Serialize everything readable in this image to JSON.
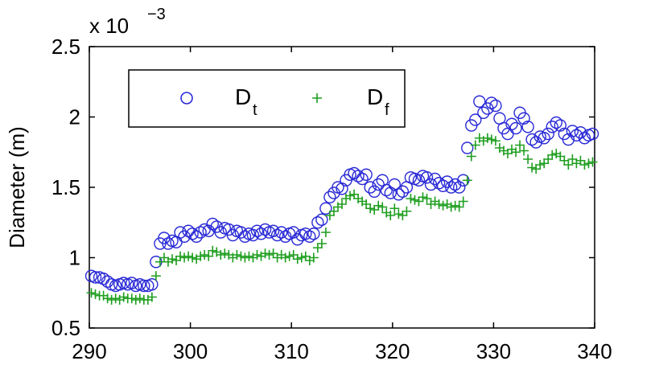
{
  "chart_data": {
    "type": "scatter",
    "xlabel": "",
    "ylabel": "Diameter (m)",
    "xlim": [
      290,
      340
    ],
    "ylim": [
      0.5,
      2.5
    ],
    "x_ticks": [
      "290",
      "300",
      "310",
      "320",
      "330",
      "340"
    ],
    "y_ticks": [
      "0.5",
      "1",
      "1.5",
      "2",
      "2.5"
    ],
    "y_multiplier": {
      "base": "x 10",
      "exponent": "−3"
    },
    "grid": false,
    "legend_position": "top-left",
    "series": [
      {
        "name": "Dt",
        "name_main": "D",
        "name_sub": "t",
        "marker": "circle",
        "color": "#2a2ad6",
        "points": [
          [
            290.2,
            0.87
          ],
          [
            290.6,
            0.86
          ],
          [
            291.0,
            0.86
          ],
          [
            291.4,
            0.85
          ],
          [
            291.8,
            0.83
          ],
          [
            292.2,
            0.81
          ],
          [
            292.6,
            0.8
          ],
          [
            293.0,
            0.81
          ],
          [
            293.4,
            0.82
          ],
          [
            293.8,
            0.81
          ],
          [
            294.2,
            0.82
          ],
          [
            294.6,
            0.8
          ],
          [
            295.0,
            0.81
          ],
          [
            295.4,
            0.8
          ],
          [
            295.8,
            0.8
          ],
          [
            296.2,
            0.81
          ],
          [
            296.6,
            0.97
          ],
          [
            297.0,
            1.1
          ],
          [
            297.4,
            1.14
          ],
          [
            297.8,
            1.1
          ],
          [
            298.2,
            1.12
          ],
          [
            298.6,
            1.11
          ],
          [
            299.0,
            1.18
          ],
          [
            299.4,
            1.15
          ],
          [
            299.8,
            1.19
          ],
          [
            300.2,
            1.17
          ],
          [
            300.6,
            1.15
          ],
          [
            301.0,
            1.18
          ],
          [
            301.4,
            1.2
          ],
          [
            301.8,
            1.19
          ],
          [
            302.2,
            1.24
          ],
          [
            302.6,
            1.22
          ],
          [
            303.0,
            1.18
          ],
          [
            303.4,
            1.21
          ],
          [
            303.8,
            1.2
          ],
          [
            304.2,
            1.16
          ],
          [
            304.6,
            1.19
          ],
          [
            305.0,
            1.18
          ],
          [
            305.4,
            1.15
          ],
          [
            305.8,
            1.17
          ],
          [
            306.2,
            1.16
          ],
          [
            306.6,
            1.19
          ],
          [
            307.0,
            1.17
          ],
          [
            307.4,
            1.2
          ],
          [
            307.8,
            1.18
          ],
          [
            308.2,
            1.19
          ],
          [
            308.6,
            1.16
          ],
          [
            309.0,
            1.18
          ],
          [
            309.4,
            1.15
          ],
          [
            309.8,
            1.17
          ],
          [
            310.2,
            1.18
          ],
          [
            310.6,
            1.13
          ],
          [
            311.0,
            1.16
          ],
          [
            311.4,
            1.17
          ],
          [
            311.8,
            1.15
          ],
          [
            312.2,
            1.17
          ],
          [
            312.6,
            1.25
          ],
          [
            313.0,
            1.27
          ],
          [
            313.4,
            1.35
          ],
          [
            313.8,
            1.43
          ],
          [
            314.2,
            1.46
          ],
          [
            314.6,
            1.5
          ],
          [
            315.0,
            1.49
          ],
          [
            315.4,
            1.55
          ],
          [
            315.8,
            1.59
          ],
          [
            316.2,
            1.6
          ],
          [
            316.6,
            1.58
          ],
          [
            317.0,
            1.56
          ],
          [
            317.4,
            1.59
          ],
          [
            317.8,
            1.5
          ],
          [
            318.2,
            1.47
          ],
          [
            318.6,
            1.52
          ],
          [
            319.0,
            1.55
          ],
          [
            319.4,
            1.48
          ],
          [
            319.8,
            1.46
          ],
          [
            320.2,
            1.52
          ],
          [
            320.6,
            1.45
          ],
          [
            321.0,
            1.47
          ],
          [
            321.4,
            1.5
          ],
          [
            321.8,
            1.57
          ],
          [
            322.2,
            1.56
          ],
          [
            322.6,
            1.55
          ],
          [
            323.0,
            1.58
          ],
          [
            323.4,
            1.57
          ],
          [
            323.8,
            1.52
          ],
          [
            324.2,
            1.56
          ],
          [
            324.6,
            1.53
          ],
          [
            325.0,
            1.51
          ],
          [
            325.4,
            1.54
          ],
          [
            325.8,
            1.5
          ],
          [
            326.2,
            1.52
          ],
          [
            326.6,
            1.5
          ],
          [
            327.0,
            1.55
          ],
          [
            327.4,
            1.78
          ],
          [
            327.8,
            1.94
          ],
          [
            328.2,
            1.98
          ],
          [
            328.6,
            2.11
          ],
          [
            329.0,
            2.03
          ],
          [
            329.4,
            2.06
          ],
          [
            329.8,
            2.1
          ],
          [
            330.2,
            2.08
          ],
          [
            330.6,
            1.99
          ],
          [
            331.0,
            1.92
          ],
          [
            331.4,
            1.88
          ],
          [
            331.8,
            1.95
          ],
          [
            332.2,
            1.92
          ],
          [
            332.6,
            2.03
          ],
          [
            333.0,
            1.99
          ],
          [
            333.4,
            1.93
          ],
          [
            333.8,
            1.84
          ],
          [
            334.2,
            1.82
          ],
          [
            334.6,
            1.86
          ],
          [
            335.0,
            1.85
          ],
          [
            335.4,
            1.88
          ],
          [
            335.8,
            1.93
          ],
          [
            336.2,
            1.96
          ],
          [
            336.6,
            1.94
          ],
          [
            337.0,
            1.88
          ],
          [
            337.4,
            1.84
          ],
          [
            337.8,
            1.9
          ],
          [
            338.2,
            1.87
          ],
          [
            338.6,
            1.89
          ],
          [
            339.0,
            1.85
          ],
          [
            339.4,
            1.87
          ],
          [
            339.8,
            1.88
          ]
        ]
      },
      {
        "name": "Df",
        "name_main": "D",
        "name_sub": "f",
        "marker": "plus",
        "color": "#1e9e1e",
        "points": [
          [
            290.2,
            0.75
          ],
          [
            290.6,
            0.74
          ],
          [
            291.0,
            0.73
          ],
          [
            291.4,
            0.73
          ],
          [
            291.8,
            0.71
          ],
          [
            292.2,
            0.7
          ],
          [
            292.6,
            0.71
          ],
          [
            293.0,
            0.7
          ],
          [
            293.4,
            0.72
          ],
          [
            293.8,
            0.71
          ],
          [
            294.2,
            0.71
          ],
          [
            294.6,
            0.7
          ],
          [
            295.0,
            0.71
          ],
          [
            295.4,
            0.7
          ],
          [
            295.8,
            0.7
          ],
          [
            296.2,
            0.72
          ],
          [
            296.6,
            0.87
          ],
          [
            297.0,
            0.97
          ],
          [
            297.4,
            1.0
          ],
          [
            297.8,
            0.97
          ],
          [
            298.2,
            0.99
          ],
          [
            298.6,
            0.98
          ],
          [
            299.0,
            1.01
          ],
          [
            299.4,
            1.0
          ],
          [
            299.8,
            1.01
          ],
          [
            300.2,
            1.0
          ],
          [
            300.6,
            0.99
          ],
          [
            301.0,
            1.01
          ],
          [
            301.4,
            1.02
          ],
          [
            301.8,
            1.01
          ],
          [
            302.2,
            1.05
          ],
          [
            302.6,
            1.04
          ],
          [
            303.0,
            1.02
          ],
          [
            303.4,
            1.03
          ],
          [
            303.8,
            1.02
          ],
          [
            304.2,
            1.0
          ],
          [
            304.6,
            1.02
          ],
          [
            305.0,
            1.01
          ],
          [
            305.4,
            1.0
          ],
          [
            305.8,
            1.01
          ],
          [
            306.2,
            1.0
          ],
          [
            306.6,
            1.02
          ],
          [
            307.0,
            1.01
          ],
          [
            307.4,
            1.03
          ],
          [
            307.8,
            1.02
          ],
          [
            308.2,
            1.03
          ],
          [
            308.6,
            1.0
          ],
          [
            309.0,
            1.02
          ],
          [
            309.4,
            1.0
          ],
          [
            309.8,
            1.01
          ],
          [
            310.2,
            1.02
          ],
          [
            310.6,
            0.99
          ],
          [
            311.0,
            1.0
          ],
          [
            311.4,
            1.01
          ],
          [
            311.8,
            0.98
          ],
          [
            312.2,
            1.0
          ],
          [
            312.6,
            1.07
          ],
          [
            313.0,
            1.1
          ],
          [
            313.4,
            1.18
          ],
          [
            313.8,
            1.3
          ],
          [
            314.2,
            1.33
          ],
          [
            314.6,
            1.36
          ],
          [
            315.0,
            1.38
          ],
          [
            315.4,
            1.42
          ],
          [
            315.8,
            1.44
          ],
          [
            316.2,
            1.45
          ],
          [
            316.6,
            1.42
          ],
          [
            317.0,
            1.4
          ],
          [
            317.4,
            1.38
          ],
          [
            317.8,
            1.35
          ],
          [
            318.2,
            1.34
          ],
          [
            318.6,
            1.37
          ],
          [
            319.0,
            1.36
          ],
          [
            319.4,
            1.32
          ],
          [
            319.8,
            1.3
          ],
          [
            320.2,
            1.35
          ],
          [
            320.6,
            1.31
          ],
          [
            321.0,
            1.3
          ],
          [
            321.4,
            1.33
          ],
          [
            321.8,
            1.42
          ],
          [
            322.2,
            1.41
          ],
          [
            322.6,
            1.4
          ],
          [
            323.0,
            1.43
          ],
          [
            323.4,
            1.42
          ],
          [
            323.8,
            1.38
          ],
          [
            324.2,
            1.4
          ],
          [
            324.6,
            1.38
          ],
          [
            325.0,
            1.37
          ],
          [
            325.4,
            1.38
          ],
          [
            325.8,
            1.36
          ],
          [
            326.2,
            1.37
          ],
          [
            326.6,
            1.36
          ],
          [
            327.0,
            1.4
          ],
          [
            327.4,
            1.55
          ],
          [
            327.8,
            1.72
          ],
          [
            328.2,
            1.8
          ],
          [
            328.6,
            1.85
          ],
          [
            329.0,
            1.83
          ],
          [
            329.4,
            1.85
          ],
          [
            329.8,
            1.84
          ],
          [
            330.2,
            1.83
          ],
          [
            330.6,
            1.78
          ],
          [
            331.0,
            1.76
          ],
          [
            331.4,
            1.74
          ],
          [
            331.8,
            1.77
          ],
          [
            332.2,
            1.75
          ],
          [
            332.6,
            1.8
          ],
          [
            333.0,
            1.76
          ],
          [
            333.4,
            1.7
          ],
          [
            333.8,
            1.64
          ],
          [
            334.2,
            1.63
          ],
          [
            334.6,
            1.66
          ],
          [
            335.0,
            1.67
          ],
          [
            335.4,
            1.7
          ],
          [
            335.8,
            1.73
          ],
          [
            336.2,
            1.74
          ],
          [
            336.6,
            1.72
          ],
          [
            337.0,
            1.69
          ],
          [
            337.4,
            1.66
          ],
          [
            337.8,
            1.7
          ],
          [
            338.2,
            1.67
          ],
          [
            338.6,
            1.69
          ],
          [
            339.0,
            1.66
          ],
          [
            339.4,
            1.67
          ],
          [
            339.8,
            1.68
          ]
        ]
      }
    ]
  }
}
